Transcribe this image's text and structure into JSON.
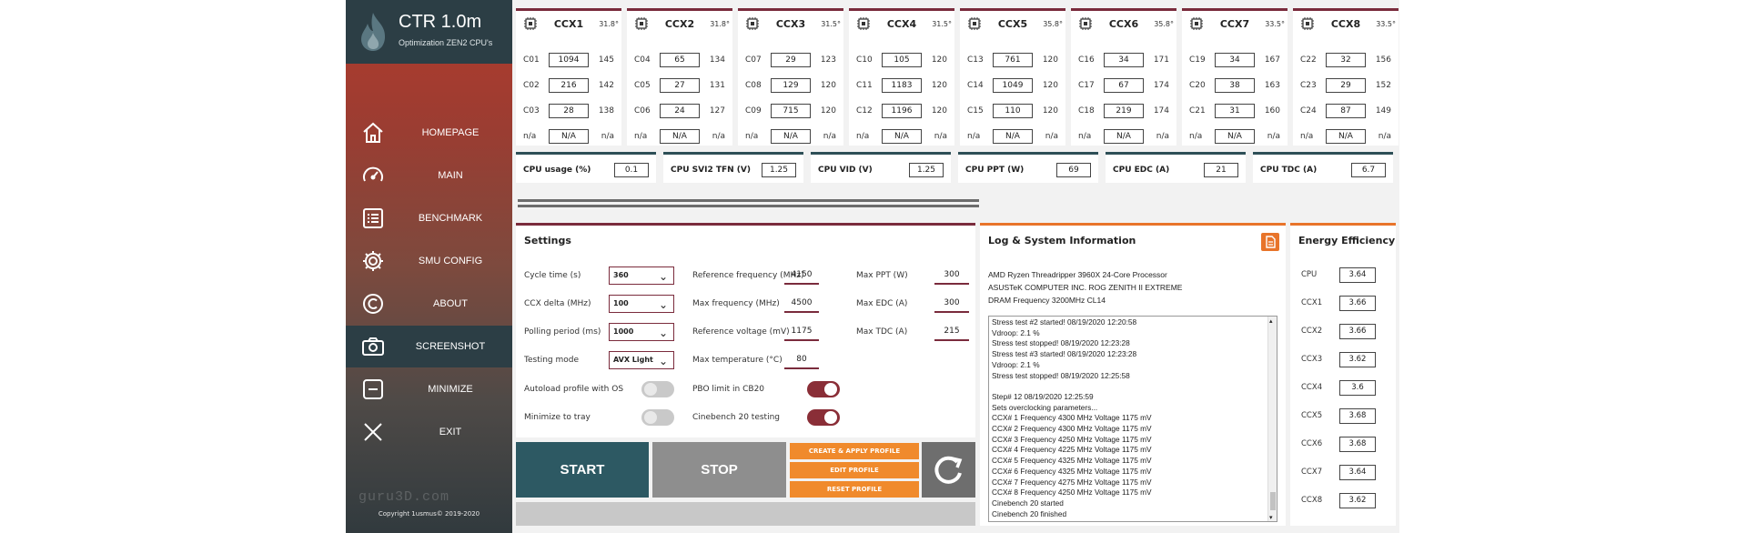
{
  "app": {
    "title": "CTR 1.0m",
    "subtitle": "Optimization ZEN2 CPU's",
    "copyright": "Copyright 1usmus© 2019-2020",
    "watermark": "guru3D.com"
  },
  "sidebar": {
    "items": [
      {
        "label": "HOMEPAGE",
        "icon": "home-icon"
      },
      {
        "label": "MAIN",
        "icon": "gauge-icon"
      },
      {
        "label": "BENCHMARK",
        "icon": "list-icon"
      },
      {
        "label": "SMU CONFIG",
        "icon": "gear-icon"
      },
      {
        "label": "ABOUT",
        "icon": "copyright-icon"
      },
      {
        "label": "SCREENSHOT",
        "icon": "camera-icon"
      },
      {
        "label": "MINIMIZE",
        "icon": "minimize-icon"
      },
      {
        "label": "EXIT",
        "icon": "close-icon"
      }
    ],
    "active": "SCREENSHOT"
  },
  "ccx": [
    {
      "name": "CCX1",
      "temp": "31.8°",
      "cores": [
        {
          "id": "C01",
          "box": "1094",
          "val": "145"
        },
        {
          "id": "C02",
          "box": "216",
          "val": "142"
        },
        {
          "id": "C03",
          "box": "28",
          "val": "138"
        },
        {
          "id": "n/a",
          "box": "N/A",
          "val": "n/a"
        }
      ]
    },
    {
      "name": "CCX2",
      "temp": "31.8°",
      "cores": [
        {
          "id": "C04",
          "box": "65",
          "val": "134"
        },
        {
          "id": "C05",
          "box": "27",
          "val": "131"
        },
        {
          "id": "C06",
          "box": "24",
          "val": "127"
        },
        {
          "id": "n/a",
          "box": "N/A",
          "val": "n/a"
        }
      ]
    },
    {
      "name": "CCX3",
      "temp": "31.5°",
      "cores": [
        {
          "id": "C07",
          "box": "29",
          "val": "123"
        },
        {
          "id": "C08",
          "box": "129",
          "val": "120"
        },
        {
          "id": "C09",
          "box": "715",
          "val": "120"
        },
        {
          "id": "n/a",
          "box": "N/A",
          "val": "n/a"
        }
      ]
    },
    {
      "name": "CCX4",
      "temp": "31.5°",
      "cores": [
        {
          "id": "C10",
          "box": "105",
          "val": "120"
        },
        {
          "id": "C11",
          "box": "1183",
          "val": "120"
        },
        {
          "id": "C12",
          "box": "1196",
          "val": "120"
        },
        {
          "id": "n/a",
          "box": "N/A",
          "val": "n/a"
        }
      ]
    },
    {
      "name": "CCX5",
      "temp": "35.8°",
      "cores": [
        {
          "id": "C13",
          "box": "761",
          "val": "120"
        },
        {
          "id": "C14",
          "box": "1049",
          "val": "120"
        },
        {
          "id": "C15",
          "box": "110",
          "val": "120"
        },
        {
          "id": "n/a",
          "box": "N/A",
          "val": "n/a"
        }
      ]
    },
    {
      "name": "CCX6",
      "temp": "35.8°",
      "cores": [
        {
          "id": "C16",
          "box": "34",
          "val": "171"
        },
        {
          "id": "C17",
          "box": "67",
          "val": "174"
        },
        {
          "id": "C18",
          "box": "219",
          "val": "174"
        },
        {
          "id": "n/a",
          "box": "N/A",
          "val": "n/a"
        }
      ]
    },
    {
      "name": "CCX7",
      "temp": "33.5°",
      "cores": [
        {
          "id": "C19",
          "box": "34",
          "val": "167"
        },
        {
          "id": "C20",
          "box": "38",
          "val": "163"
        },
        {
          "id": "C21",
          "box": "31",
          "val": "160"
        },
        {
          "id": "n/a",
          "box": "N/A",
          "val": "n/a"
        }
      ]
    },
    {
      "name": "CCX8",
      "temp": "33.5°",
      "cores": [
        {
          "id": "C22",
          "box": "32",
          "val": "156"
        },
        {
          "id": "C23",
          "box": "29",
          "val": "152"
        },
        {
          "id": "C24",
          "box": "87",
          "val": "149"
        },
        {
          "id": "n/a",
          "box": "N/A",
          "val": "n/a"
        }
      ]
    }
  ],
  "summary": [
    {
      "label": "CPU usage (%)",
      "value": "0.1"
    },
    {
      "label": "CPU SVI2 TFN (V)",
      "value": "1.25"
    },
    {
      "label": "CPU VID (V)",
      "value": "1.25"
    },
    {
      "label": "CPU PPT (W)",
      "value": "69"
    },
    {
      "label": "CPU EDC (A)",
      "value": "21"
    },
    {
      "label": "CPU TDC (A)",
      "value": "6.7"
    }
  ],
  "settings": {
    "title": "Settings",
    "selects": [
      {
        "label": "Cycle time (s)",
        "value": "360"
      },
      {
        "label": "CCX delta (MHz)",
        "value": "100"
      },
      {
        "label": "Polling period (ms)",
        "value": "1000"
      },
      {
        "label": "Testing mode",
        "value": "AVX Light"
      }
    ],
    "refs": [
      {
        "label": "Reference frequency (MHz)",
        "value": "4150"
      },
      {
        "label": "Max frequency (MHz)",
        "value": "4500"
      },
      {
        "label": "Reference voltage (mV)",
        "value": "1175"
      },
      {
        "label": "Max temperature (°C)",
        "value": "80"
      }
    ],
    "maxes": [
      {
        "label": "Max PPT (W)",
        "value": "300"
      },
      {
        "label": "Max EDC (A)",
        "value": "300"
      },
      {
        "label": "Max TDC (A)",
        "value": "215"
      }
    ],
    "toggles": [
      {
        "label": "Autoload profile with OS",
        "on": false
      },
      {
        "label": "Minimize to tray",
        "on": false
      },
      {
        "label": "PBO limit in CB20",
        "on": true
      },
      {
        "label": "Cinebench 20 testing",
        "on": true
      }
    ]
  },
  "log": {
    "title": "Log & System Information",
    "system": [
      "AMD Ryzen Threadripper 3960X 24-Core Processor",
      "ASUSTeK COMPUTER INC. ROG ZENITH II EXTREME",
      "DRAM Frequency 3200MHz CL14"
    ],
    "lines": [
      "Stress test #2 started!  08/19/2020 12:20:58",
      "Vdroop: 2.1 %",
      "Stress test stopped!  08/19/2020 12:23:28",
      "Stress test #3 started!  08/19/2020 12:23:28",
      "Vdroop: 2.1 %",
      "Stress test stopped!  08/19/2020 12:25:58",
      "",
      "Step# 12  08/19/2020 12:25:59",
      "Sets overclocking parameters...",
      "CCX# 1  Frequency 4300 MHz  Voltage 1175 mV",
      "CCX# 2  Frequency 4300 MHz  Voltage 1175 mV",
      "CCX# 3  Frequency 4250 MHz  Voltage 1175 mV",
      "CCX# 4  Frequency 4225 MHz  Voltage 1175 mV",
      "CCX# 5  Frequency 4325 MHz  Voltage 1175 mV",
      "CCX# 6  Frequency 4325 MHz  Voltage 1175 mV",
      "CCX# 7  Frequency 4275 MHz  Voltage 1175 mV",
      "CCX# 8  Frequency 4250 MHz  Voltage 1175 mV",
      "Cinebench 20 started",
      "Cinebench 20 finished"
    ]
  },
  "energy": {
    "title": "Energy Efficiency",
    "rows": [
      {
        "label": "CPU",
        "value": "3.64"
      },
      {
        "label": "CCX1",
        "value": "3.66"
      },
      {
        "label": "CCX2",
        "value": "3.66"
      },
      {
        "label": "CCX3",
        "value": "3.62"
      },
      {
        "label": "CCX4",
        "value": "3.6"
      },
      {
        "label": "CCX5",
        "value": "3.68"
      },
      {
        "label": "CCX6",
        "value": "3.68"
      },
      {
        "label": "CCX7",
        "value": "3.64"
      },
      {
        "label": "CCX8",
        "value": "3.62"
      }
    ]
  },
  "buttons": {
    "start": "START",
    "stop": "STOP",
    "create_profile": "CREATE & APPLY PROFILE",
    "edit_profile": "EDIT PROFILE",
    "reset_profile": "RESET PROFILE",
    "refresh_icon": "refresh-icon"
  },
  "colors": {
    "accent_dark": "#7a2b3c",
    "accent_orange": "#e8742a",
    "teal": "#2e4f57",
    "start_bg": "#2d5963",
    "stop_bg": "#8e8e8e",
    "toggle_on": "#8a2e37"
  }
}
